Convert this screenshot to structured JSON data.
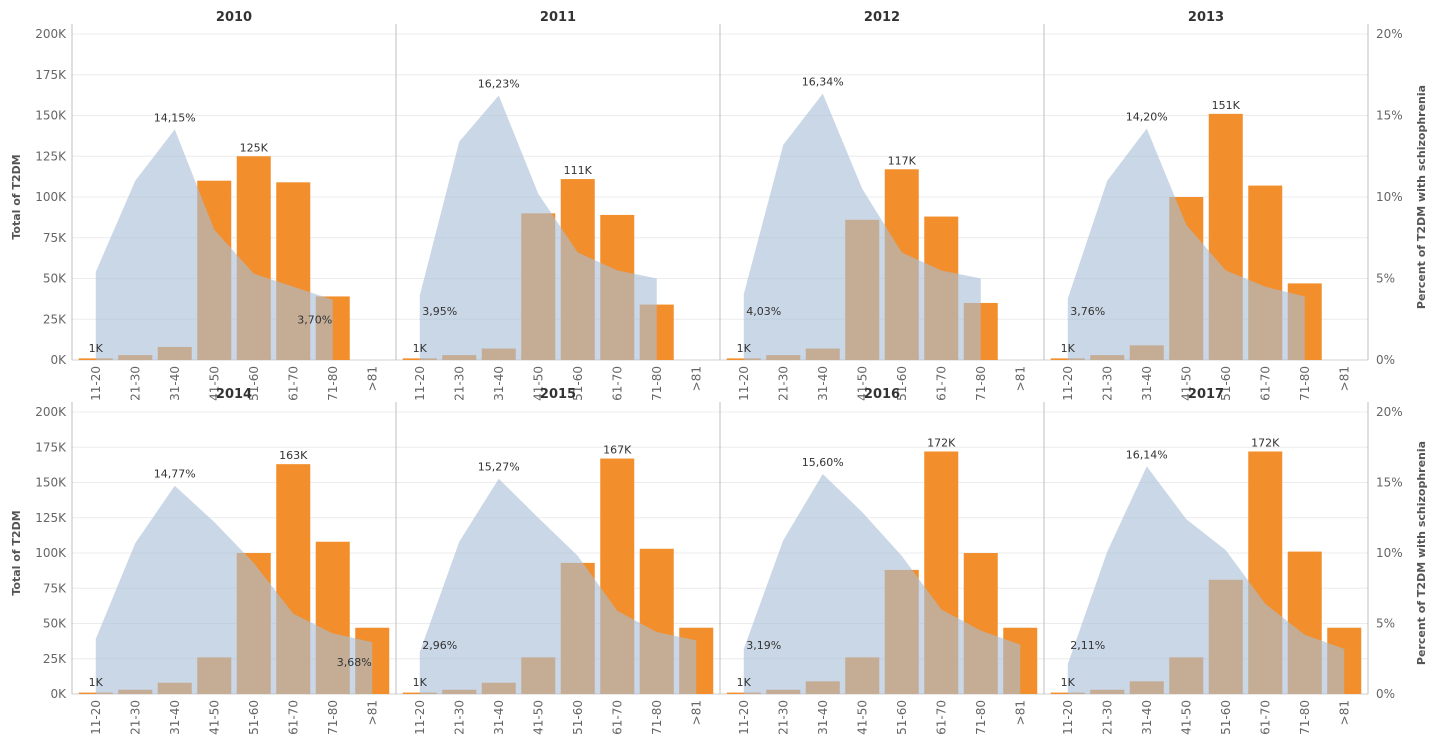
{
  "chart_data": {
    "type": "bar+area",
    "left_axis": {
      "label": "Total of T2DM",
      "ticks": [
        "0K",
        "25K",
        "50K",
        "75K",
        "100K",
        "125K",
        "150K",
        "175K",
        "200K"
      ],
      "range": [
        0,
        200000
      ]
    },
    "right_axis": {
      "label": "Percent of T2DM with schizophrenia",
      "ticks": [
        "0%",
        "5%",
        "10%",
        "15%",
        "20%"
      ],
      "range": [
        0,
        20
      ]
    },
    "categories": [
      "11-20",
      "21-30",
      "31-40",
      "41-50",
      "51-60",
      "61-70",
      "71-80",
      ">81"
    ],
    "colors": {
      "bar": "#f28e2b",
      "area": "#a9bfd6"
    },
    "panels": [
      {
        "year": "2010",
        "bars": [
          1000,
          3000,
          8000,
          110000,
          125000,
          109000,
          39000,
          null
        ],
        "area": [
          5.4,
          11.0,
          14.15,
          8.0,
          5.3,
          4.5,
          3.7
        ],
        "labels": [
          {
            "i": 0,
            "s": "bar",
            "text": "1K"
          },
          {
            "i": 4,
            "s": "bar",
            "text": "125K"
          },
          {
            "i": 2,
            "s": "area",
            "text": "14,15%"
          },
          {
            "i": 6,
            "s": "area",
            "text": "3,70%"
          }
        ]
      },
      {
        "year": "2011",
        "bars": [
          1000,
          3000,
          7000,
          90000,
          111000,
          89000,
          34000,
          null
        ],
        "area": [
          3.95,
          13.4,
          16.23,
          10.2,
          6.6,
          5.5,
          5.0
        ],
        "labels": [
          {
            "i": 0,
            "s": "bar",
            "text": "1K"
          },
          {
            "i": 4,
            "s": "bar",
            "text": "111K"
          },
          {
            "i": 2,
            "s": "area",
            "text": "16,23%"
          },
          {
            "i": 0,
            "s": "area",
            "text": "3,95%"
          }
        ]
      },
      {
        "year": "2012",
        "bars": [
          1000,
          3000,
          7000,
          86000,
          117000,
          88000,
          35000,
          null
        ],
        "area": [
          4.03,
          13.2,
          16.34,
          10.5,
          6.6,
          5.5,
          5.0
        ],
        "labels": [
          {
            "i": 0,
            "s": "bar",
            "text": "1K"
          },
          {
            "i": 4,
            "s": "bar",
            "text": "117K"
          },
          {
            "i": 2,
            "s": "area",
            "text": "16,34%"
          },
          {
            "i": 0,
            "s": "area",
            "text": "4,03%"
          }
        ]
      },
      {
        "year": "2013",
        "bars": [
          1000,
          3000,
          9000,
          100000,
          151000,
          107000,
          47000,
          null
        ],
        "area": [
          3.76,
          11.0,
          14.2,
          8.3,
          5.5,
          4.5,
          3.9
        ],
        "labels": [
          {
            "i": 0,
            "s": "bar",
            "text": "1K"
          },
          {
            "i": 4,
            "s": "bar",
            "text": "151K"
          },
          {
            "i": 2,
            "s": "area",
            "text": "14,20%"
          },
          {
            "i": 0,
            "s": "area",
            "text": "3,76%"
          }
        ]
      },
      {
        "year": "2014",
        "bars": [
          1000,
          3000,
          8000,
          26000,
          100000,
          163000,
          108000,
          47000
        ],
        "area": [
          3.9,
          10.7,
          14.77,
          12.2,
          9.3,
          5.7,
          4.3,
          3.68
        ],
        "labels": [
          {
            "i": 0,
            "s": "bar",
            "text": "1K"
          },
          {
            "i": 5,
            "s": "bar",
            "text": "163K"
          },
          {
            "i": 2,
            "s": "area",
            "text": "14,77%"
          },
          {
            "i": 7,
            "s": "area",
            "text": "3,68%"
          }
        ]
      },
      {
        "year": "2015",
        "bars": [
          1000,
          3000,
          8000,
          26000,
          93000,
          167000,
          103000,
          47000
        ],
        "area": [
          2.96,
          10.8,
          15.27,
          12.5,
          9.8,
          5.9,
          4.4,
          3.8
        ],
        "labels": [
          {
            "i": 0,
            "s": "bar",
            "text": "1K"
          },
          {
            "i": 5,
            "s": "bar",
            "text": "167K"
          },
          {
            "i": 2,
            "s": "area",
            "text": "15,27%"
          },
          {
            "i": 0,
            "s": "area",
            "text": "2,96%"
          }
        ]
      },
      {
        "year": "2016",
        "bars": [
          1000,
          3000,
          9000,
          26000,
          88000,
          172000,
          100000,
          47000
        ],
        "area": [
          3.19,
          10.9,
          15.6,
          12.9,
          9.8,
          6.0,
          4.5,
          3.5
        ],
        "labels": [
          {
            "i": 0,
            "s": "bar",
            "text": "1K"
          },
          {
            "i": 5,
            "s": "bar",
            "text": "172K"
          },
          {
            "i": 2,
            "s": "area",
            "text": "15,60%"
          },
          {
            "i": 0,
            "s": "area",
            "text": "3,19%"
          }
        ]
      },
      {
        "year": "2017",
        "bars": [
          1000,
          3000,
          9000,
          26000,
          81000,
          172000,
          101000,
          47000
        ],
        "area": [
          2.11,
          10.1,
          16.14,
          12.4,
          10.2,
          6.4,
          4.2,
          3.2
        ],
        "labels": [
          {
            "i": 0,
            "s": "bar",
            "text": "1K"
          },
          {
            "i": 5,
            "s": "bar",
            "text": "172K"
          },
          {
            "i": 2,
            "s": "area",
            "text": "16,14%"
          },
          {
            "i": 0,
            "s": "area",
            "text": "2,11%"
          }
        ]
      }
    ]
  }
}
